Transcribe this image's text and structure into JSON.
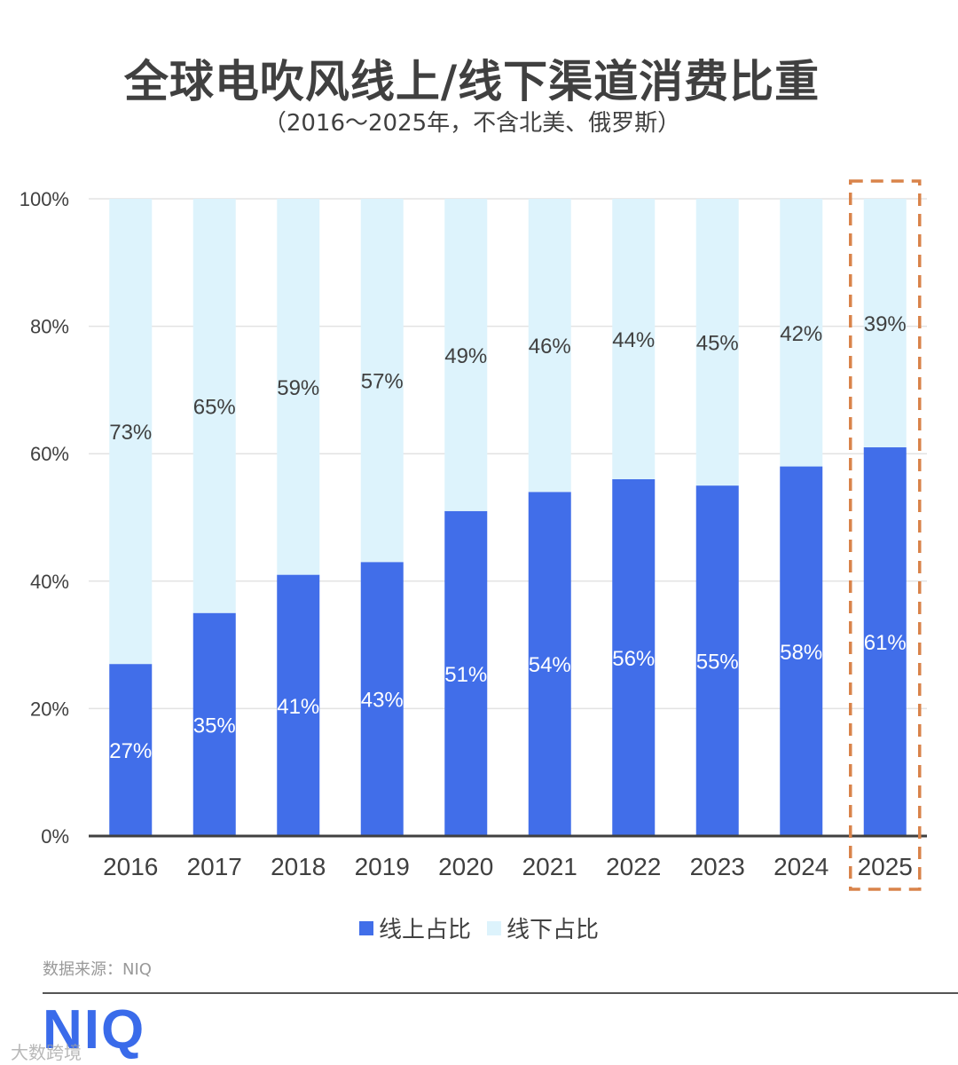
{
  "title": "全球电吹风线上/线下渠道消费比重",
  "subtitle": "（2016～2025年，不含北美、俄罗斯）",
  "chart_data": {
    "type": "bar",
    "stacked": true,
    "percent_stacked": true,
    "categories": [
      "2016",
      "2017",
      "2018",
      "2019",
      "2020",
      "2021",
      "2022",
      "2023",
      "2024",
      "2025"
    ],
    "series": [
      {
        "name": "线上占比",
        "color": "#416ee9",
        "label_color": "#ffffff",
        "values": [
          27,
          35,
          41,
          43,
          51,
          54,
          56,
          55,
          58,
          61
        ],
        "labels": [
          "27%",
          "35%",
          "41%",
          "43%",
          "51%",
          "54%",
          "56%",
          "55%",
          "58%",
          "61%"
        ]
      },
      {
        "name": "线下占比",
        "color": "#ddf3fc",
        "label_color": "#404040",
        "values": [
          73,
          65,
          59,
          57,
          49,
          46,
          44,
          45,
          42,
          39
        ],
        "labels": [
          "73%",
          "65%",
          "59%",
          "57%",
          "49%",
          "46%",
          "44%",
          "45%",
          "42%",
          "39%"
        ]
      }
    ],
    "ylim": [
      0,
      100
    ],
    "yticks": [
      "0%",
      "20%",
      "40%",
      "60%",
      "80%",
      "100%"
    ],
    "grid": true,
    "legend_position": "bottom",
    "highlight_category": "2025",
    "highlight_color": "#d9834a"
  },
  "legend": [
    {
      "label": "线上占比",
      "color": "#416ee9"
    },
    {
      "label": "线下占比",
      "color": "#ddf3fc"
    }
  ],
  "source": "数据来源：NIQ",
  "logo": "NIQ",
  "watermark": "大数跨境"
}
